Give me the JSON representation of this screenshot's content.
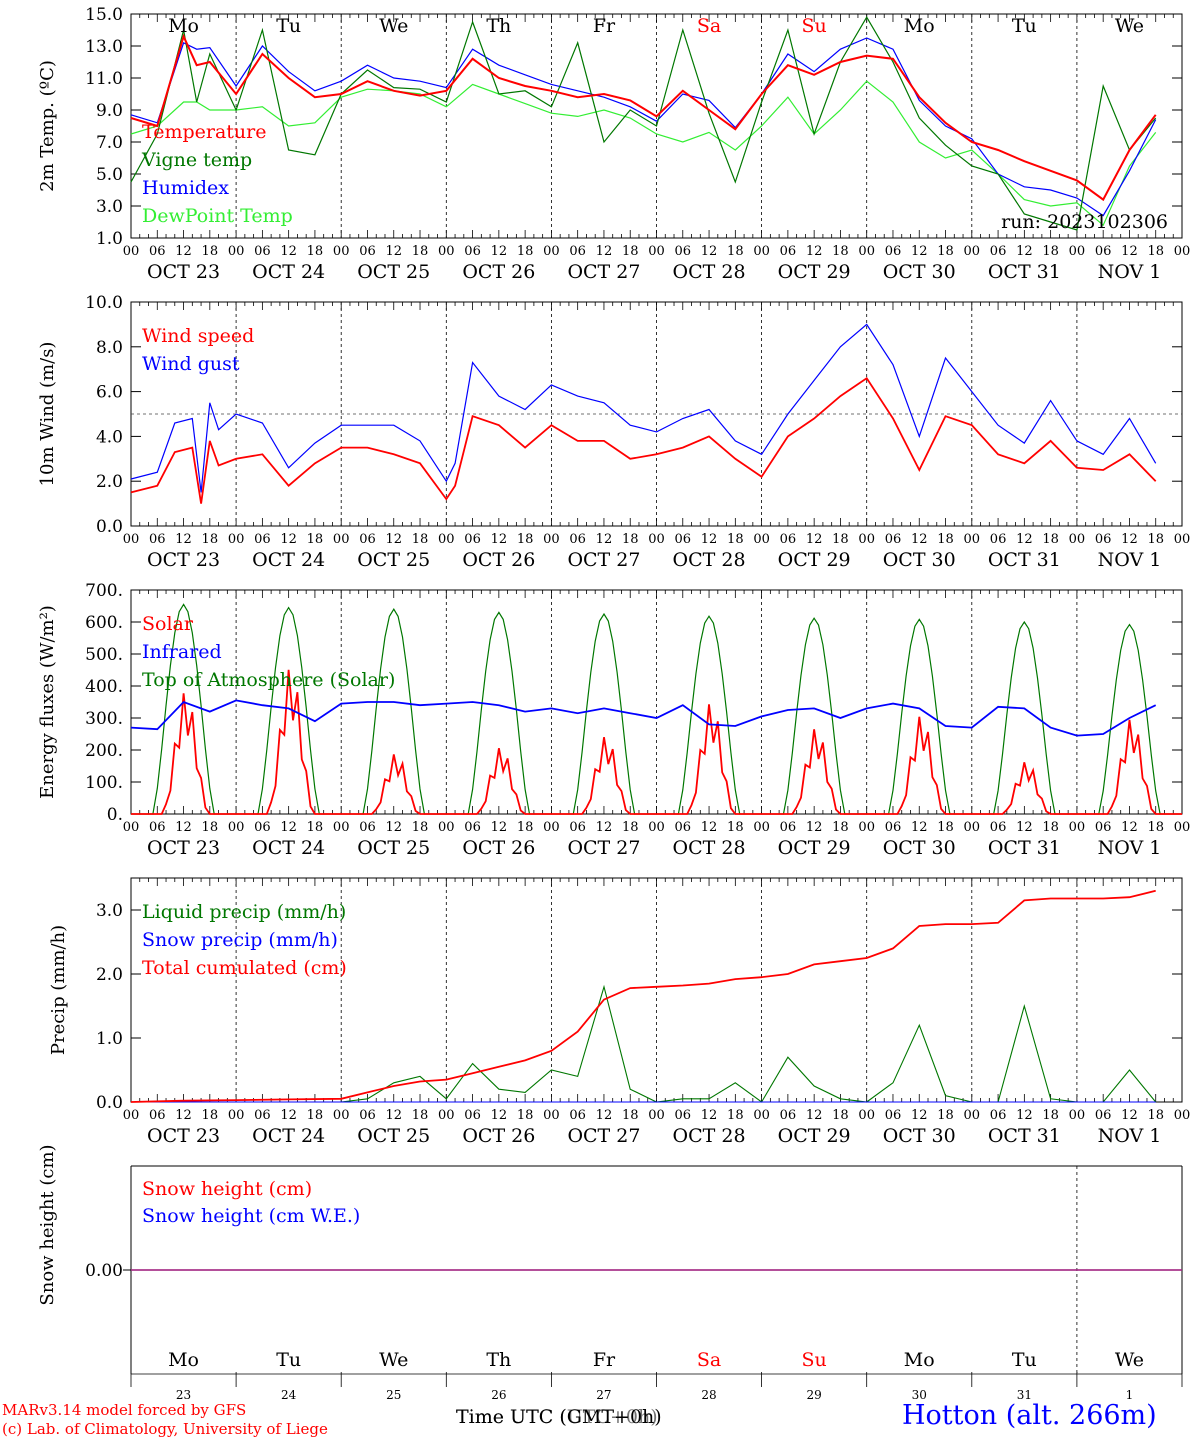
{
  "chart_data": [
    {
      "type": "line",
      "ylabel": "2m Temp. (ºC)",
      "ylim": [
        1.0,
        15.0
      ],
      "yticks": [
        "1.0",
        "3.0",
        "5.0",
        "7.0",
        "9.0",
        "11.0",
        "13.0",
        "15.0"
      ],
      "run_label": "run: 2023102306",
      "x_hours": [
        0,
        6,
        12,
        15,
        18,
        24,
        30,
        36,
        42,
        48,
        54,
        60,
        66,
        72,
        78,
        84,
        90,
        96,
        102,
        108,
        114,
        120,
        126,
        132,
        138,
        144,
        150,
        156,
        162,
        168,
        174,
        180,
        186,
        192,
        198,
        204,
        210,
        216,
        222,
        228,
        234
      ],
      "series": [
        {
          "name": "Temperature",
          "color": "#ff0000",
          "values": [
            8.5,
            8.0,
            13.6,
            11.8,
            12.0,
            10.0,
            12.5,
            11.0,
            9.8,
            10.0,
            10.8,
            10.2,
            9.9,
            10.2,
            12.2,
            11.0,
            10.5,
            10.2,
            9.8,
            10.0,
            9.6,
            8.6,
            10.2,
            9.0,
            7.8,
            10.0,
            11.8,
            11.2,
            12.0,
            12.4,
            12.2,
            9.8,
            8.2,
            7.0,
            6.5,
            5.8,
            5.2,
            4.6,
            3.4,
            6.5,
            8.7
          ]
        },
        {
          "name": "Vigne temp",
          "color": "#007700",
          "values": [
            4.5,
            7.5,
            14.0,
            9.5,
            12.5,
            9.0,
            14.0,
            6.5,
            6.2,
            10.0,
            11.5,
            10.4,
            10.3,
            9.5,
            14.5,
            10.0,
            10.2,
            9.2,
            13.2,
            7.0,
            9.0,
            8.0,
            14.0,
            8.8,
            4.5,
            9.5,
            14.0,
            7.5,
            12.0,
            14.8,
            12.0,
            8.5,
            6.8,
            5.5,
            5.0,
            2.5,
            2.0,
            1.5,
            10.5,
            6.5,
            8.5
          ]
        },
        {
          "name": "Humidex",
          "color": "#0000ff",
          "values": [
            8.7,
            8.2,
            13.2,
            12.8,
            12.9,
            10.5,
            13.0,
            11.4,
            10.2,
            10.8,
            11.8,
            11.0,
            10.8,
            10.4,
            12.8,
            11.8,
            11.2,
            10.6,
            10.2,
            9.8,
            9.2,
            8.3,
            10.0,
            9.6,
            7.9,
            10.0,
            12.5,
            11.4,
            12.8,
            13.5,
            12.8,
            9.6,
            8.0,
            7.2,
            5.0,
            4.2,
            4.0,
            3.5,
            2.4,
            5.2,
            8.4
          ]
        },
        {
          "name": "DewPoint Temp",
          "color": "#33ee33",
          "values": [
            7.5,
            8.0,
            9.5,
            9.5,
            9.0,
            9.0,
            9.2,
            8.0,
            8.2,
            9.8,
            10.3,
            10.2,
            10.0,
            9.2,
            10.6,
            10.0,
            9.4,
            8.8,
            8.6,
            9.0,
            8.5,
            7.5,
            7.0,
            7.6,
            6.5,
            8.0,
            9.8,
            7.5,
            9.0,
            10.8,
            9.5,
            7.0,
            6.0,
            6.5,
            5.0,
            3.4,
            3.0,
            3.2,
            1.8,
            5.5,
            7.6
          ]
        }
      ]
    },
    {
      "type": "line",
      "ylabel": "10m Wind (m/s)",
      "ylim": [
        0.0,
        10.0
      ],
      "yticks": [
        "0.0",
        "2.0",
        "4.0",
        "6.0",
        "8.0",
        "10.0"
      ],
      "reference_line": 5.0,
      "x_hours": [
        0,
        6,
        10,
        14,
        16,
        18,
        20,
        24,
        30,
        36,
        42,
        48,
        54,
        60,
        66,
        72,
        74,
        78,
        84,
        90,
        96,
        102,
        108,
        114,
        120,
        126,
        132,
        138,
        144,
        150,
        156,
        162,
        168,
        174,
        180,
        186,
        192,
        198,
        204,
        210,
        216,
        222,
        228,
        234
      ],
      "series": [
        {
          "name": "Wind speed",
          "color": "#ff0000",
          "values": [
            1.5,
            1.8,
            3.3,
            3.5,
            1.0,
            3.8,
            2.7,
            3.0,
            3.2,
            1.8,
            2.8,
            3.5,
            3.5,
            3.2,
            2.8,
            1.2,
            1.8,
            4.9,
            4.5,
            3.5,
            4.5,
            3.8,
            3.8,
            3.0,
            3.2,
            3.5,
            4.0,
            3.0,
            2.2,
            4.0,
            4.8,
            5.8,
            6.6,
            4.8,
            2.5,
            4.9,
            4.5,
            3.2,
            2.8,
            3.8,
            2.6,
            2.5,
            3.2,
            2.0
          ]
        },
        {
          "name": "Wind gust",
          "color": "#0000ff",
          "values": [
            2.1,
            2.4,
            4.6,
            4.8,
            1.5,
            5.5,
            4.3,
            5.0,
            4.6,
            2.6,
            3.7,
            4.5,
            4.5,
            4.5,
            3.8,
            2.0,
            2.8,
            7.3,
            5.8,
            5.2,
            6.3,
            5.8,
            5.5,
            4.5,
            4.2,
            4.8,
            5.2,
            3.8,
            3.2,
            5.0,
            6.5,
            8.0,
            9.0,
            7.2,
            4.0,
            7.5,
            6.0,
            4.5,
            3.7,
            5.6,
            3.8,
            3.2,
            4.8,
            2.8
          ]
        }
      ]
    },
    {
      "type": "line",
      "ylabel": "Energy fluxes (W/m²)",
      "ylim": [
        0,
        700
      ],
      "yticks": [
        "0.",
        "100.",
        "200.",
        "300.",
        "400.",
        "500.",
        "600.",
        "700."
      ],
      "solar_peaks": [
        385,
        460,
        190,
        210,
        245,
        350,
        270,
        310,
        165,
        300
      ],
      "toa_peaks": [
        655,
        645,
        640,
        630,
        625,
        618,
        612,
        608,
        600,
        592
      ],
      "infrared": {
        "x_hours": [
          0,
          6,
          12,
          18,
          24,
          30,
          36,
          42,
          48,
          54,
          60,
          66,
          72,
          78,
          84,
          90,
          96,
          102,
          108,
          114,
          120,
          126,
          132,
          138,
          144,
          150,
          156,
          162,
          168,
          174,
          180,
          186,
          192,
          198,
          204,
          210,
          216,
          222,
          228,
          234
        ],
        "values": [
          270,
          265,
          350,
          320,
          355,
          340,
          330,
          290,
          345,
          350,
          350,
          340,
          345,
          350,
          340,
          320,
          330,
          315,
          330,
          315,
          300,
          340,
          280,
          275,
          305,
          325,
          330,
          300,
          330,
          345,
          330,
          275,
          270,
          335,
          330,
          270,
          245,
          250,
          300,
          340
        ]
      },
      "series": [
        {
          "name": "Solar",
          "color": "#ff0000"
        },
        {
          "name": "Infrared",
          "color": "#0000ff"
        },
        {
          "name": "Top of Atmosphere (Solar)",
          "color": "#007700"
        }
      ]
    },
    {
      "type": "line",
      "ylabel": "Precip (mm/h)",
      "ylim": [
        0.0,
        3.5
      ],
      "yticks": [
        "0.0",
        "1.0",
        "2.0",
        "3.0"
      ],
      "x_hours": [
        0,
        12,
        24,
        36,
        48,
        54,
        60,
        66,
        72,
        78,
        84,
        90,
        96,
        102,
        108,
        114,
        120,
        126,
        132,
        138,
        144,
        150,
        156,
        162,
        168,
        174,
        180,
        186,
        192,
        198,
        204,
        210,
        216,
        222,
        228,
        234
      ],
      "series": [
        {
          "name": "Liquid precip (mm/h)",
          "color": "#007700",
          "values": [
            0,
            0,
            0,
            0,
            0,
            0.05,
            0.3,
            0.4,
            0.05,
            0.6,
            0.2,
            0.15,
            0.5,
            0.4,
            1.8,
            0.2,
            0,
            0.05,
            0.05,
            0.3,
            0,
            0.7,
            0.25,
            0.05,
            0,
            0.3,
            1.2,
            0.1,
            0,
            0,
            1.5,
            0.05,
            0,
            0,
            0.5,
            0
          ]
        },
        {
          "name": "Snow precip (mm/h)",
          "color": "#0000ff",
          "values": [
            0,
            0,
            0,
            0,
            0,
            0,
            0,
            0,
            0,
            0,
            0,
            0,
            0,
            0,
            0,
            0,
            0,
            0,
            0,
            0,
            0,
            0,
            0,
            0,
            0,
            0,
            0,
            0,
            0,
            0,
            0,
            0,
            0,
            0,
            0,
            0
          ]
        },
        {
          "name": "Total cumulated (cm)",
          "color": "#ff0000",
          "values": [
            0,
            0.02,
            0.03,
            0.04,
            0.05,
            0.15,
            0.25,
            0.32,
            0.35,
            0.45,
            0.55,
            0.65,
            0.8,
            1.1,
            1.6,
            1.78,
            1.8,
            1.82,
            1.85,
            1.92,
            1.95,
            2.0,
            2.15,
            2.2,
            2.25,
            2.4,
            2.75,
            2.78,
            2.78,
            2.8,
            3.15,
            3.18,
            3.18,
            3.18,
            3.2,
            3.3
          ]
        }
      ]
    },
    {
      "type": "line",
      "ylabel": "Snow height (cm)",
      "ylim": [
        -1,
        1
      ],
      "yticks": [
        "0.00"
      ],
      "series": [
        {
          "name": "Snow height (cm)",
          "color": "#ff0000",
          "values": [
            0,
            0
          ]
        },
        {
          "name": "Snow height (cm W.E.)",
          "color": "#0000ff",
          "values": [
            0,
            0
          ]
        }
      ]
    }
  ],
  "day_labels": [
    "Mo",
    "Tu",
    "We",
    "Th",
    "Fr",
    "Sa",
    "Su",
    "Mo",
    "Tu",
    "We"
  ],
  "day_label_colors": [
    "#000000",
    "#000000",
    "#000000",
    "#000000",
    "#000000",
    "#ff0000",
    "#ff0000",
    "#000000",
    "#000000",
    "#000000"
  ],
  "date_labels": [
    "OCT 23",
    "OCT 24",
    "OCT 25",
    "OCT 26",
    "OCT 27",
    "OCT 28",
    "OCT 29",
    "OCT 30",
    "OCT 31",
    "NOV  1"
  ],
  "date_numbers": [
    "23",
    "24",
    "25",
    "26",
    "27",
    "28",
    "29",
    "30",
    "31",
    "1"
  ],
  "hour_ticks": [
    "00",
    "06",
    "12",
    "18"
  ],
  "hour_tick_end": "00",
  "footer": {
    "model": "MARv3.14 model forced by GFS",
    "lab": "(c) Lab. of Climatology, University of Liege",
    "xlabel_a": "Time UTC (GMT+0h)",
    "xlabel_b": "Time UTC (UTC+0h)",
    "station": "Hotton (alt. 266m)"
  }
}
